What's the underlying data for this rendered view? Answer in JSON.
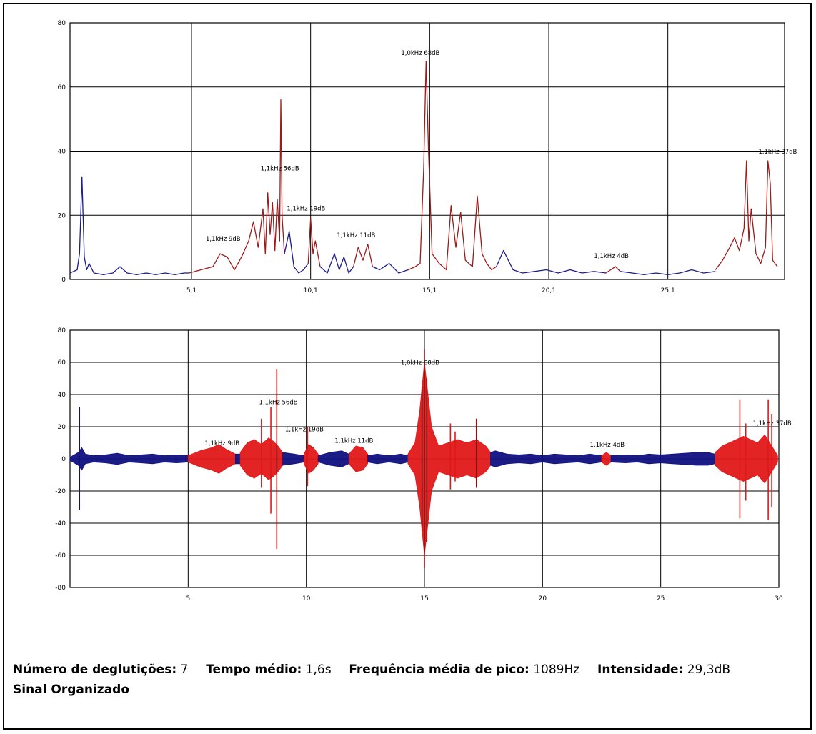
{
  "chart_data": [
    {
      "type": "line",
      "title": "",
      "xlabel": "",
      "ylabel": "",
      "xlim": [
        0,
        30
      ],
      "ylim": [
        0,
        80
      ],
      "grid": true,
      "y_ticks": [
        0,
        20,
        40,
        60,
        80
      ],
      "x_ticks": [
        5.1,
        10.1,
        15.1,
        20.1,
        25.1
      ],
      "x_tick_labels": [
        "5,1",
        "10,1",
        "15,1",
        "20,1",
        "25,1"
      ],
      "colors": {
        "baseline": "#1c1c8c",
        "event": "#9c1a1a"
      },
      "series": [
        {
          "x": [
            0,
            0.3,
            0.4,
            0.5,
            0.6,
            0.7,
            0.8,
            1.0,
            1.4,
            1.8,
            2.1,
            2.4,
            2.8,
            3.2,
            3.6,
            4.0,
            4.4,
            4.8,
            5.0
          ],
          "values": [
            2,
            3,
            8,
            32,
            7,
            3,
            5,
            2,
            1.5,
            2,
            4,
            2,
            1.5,
            2,
            1.5,
            2,
            1.5,
            2,
            2
          ]
        },
        {
          "x": [
            5.0,
            5.5,
            6.0,
            6.3,
            6.6,
            6.9,
            7.2,
            7.5,
            7.7,
            7.9,
            8.1,
            8.2,
            8.3,
            8.4,
            8.5,
            8.6,
            8.7,
            8.8,
            8.85,
            8.9,
            9.0
          ],
          "values": [
            2,
            3,
            4,
            8,
            7,
            3,
            7,
            12,
            18,
            10,
            22,
            8,
            27,
            14,
            24,
            9,
            25,
            12,
            56,
            20,
            8
          ]
        },
        {
          "x": [
            9.0,
            9.2,
            9.4,
            9.6,
            9.8,
            10.0
          ],
          "values": [
            8,
            15,
            4,
            2,
            3,
            5
          ]
        },
        {
          "x": [
            10.0,
            10.1,
            10.2,
            10.3,
            10.5
          ],
          "values": [
            5,
            19,
            8,
            12,
            4
          ]
        },
        {
          "x": [
            10.5,
            10.8,
            11.1,
            11.3,
            11.5,
            11.7,
            11.9
          ],
          "values": [
            4,
            2,
            8,
            3,
            7,
            2,
            4
          ]
        },
        {
          "x": [
            11.9,
            12.1,
            12.3,
            12.5,
            12.7
          ],
          "values": [
            4,
            10,
            6,
            11,
            4
          ]
        },
        {
          "x": [
            12.7,
            13.0,
            13.4,
            13.8,
            14.2
          ],
          "values": [
            4,
            3,
            5,
            2,
            3
          ]
        },
        {
          "x": [
            14.2,
            14.5,
            14.7,
            14.85,
            14.95,
            15.05,
            15.2,
            15.5,
            15.8,
            16.0,
            16.2,
            16.4,
            16.6,
            16.9,
            17.1,
            17.3,
            17.5,
            17.7,
            17.9
          ],
          "values": [
            3,
            4,
            5,
            35,
            68,
            40,
            8,
            5,
            3,
            23,
            10,
            21,
            6,
            4,
            26,
            8,
            5,
            3,
            4
          ]
        },
        {
          "x": [
            17.9,
            18.2,
            18.6,
            19.0,
            19.5,
            20.0,
            20.5,
            21.0,
            21.5,
            22.0,
            22.5
          ],
          "values": [
            4,
            9,
            3,
            2,
            2.5,
            3,
            2,
            3,
            2,
            2.5,
            2
          ]
        },
        {
          "x": [
            22.5,
            22.7,
            22.9,
            23.1
          ],
          "values": [
            2,
            3,
            4,
            2.5
          ]
        },
        {
          "x": [
            23.1,
            23.6,
            24.1,
            24.6,
            25.1,
            25.6,
            26.1,
            26.6,
            27.1
          ],
          "values": [
            2.5,
            2,
            1.5,
            2,
            1.5,
            2,
            3,
            2,
            2.5
          ]
        },
        {
          "x": [
            27.1,
            27.4,
            27.7,
            27.9,
            28.1,
            28.3,
            28.4,
            28.5,
            28.6,
            28.8,
            29.0,
            29.2,
            29.3,
            29.4,
            29.5,
            29.7
          ],
          "values": [
            3,
            6,
            10,
            13,
            9,
            16,
            37,
            12,
            22,
            8,
            5,
            10,
            37,
            30,
            6,
            4
          ]
        }
      ],
      "annotations": [
        {
          "text": "1,1kHz 9dB",
          "x": 5.7,
          "y": 12
        },
        {
          "text": "1,1kHz 56dB",
          "x": 8.0,
          "y": 34
        },
        {
          "text": "1,1kHz 19dB",
          "x": 9.1,
          "y": 21.5
        },
        {
          "text": "1,1kHz 11dB",
          "x": 11.2,
          "y": 13.2
        },
        {
          "text": "1,0kHz 68dB",
          "x": 13.9,
          "y": 70
        },
        {
          "text": "1,1kHz 4dB",
          "x": 22.0,
          "y": 6.7
        },
        {
          "text": "1,1kHz 37dB",
          "x": 28.9,
          "y": 39.2
        }
      ]
    },
    {
      "type": "area",
      "title": "",
      "xlabel": "",
      "ylabel": "",
      "xlim": [
        0,
        30
      ],
      "ylim": [
        -80,
        80
      ],
      "grid": true,
      "y_ticks": [
        -80,
        -60,
        -40,
        -20,
        0,
        20,
        40,
        60,
        80
      ],
      "x_ticks": [
        0,
        5,
        10,
        15,
        20,
        25,
        30
      ],
      "x_tick_labels": [
        "",
        "5",
        "10",
        "15",
        "20",
        "25",
        "30"
      ],
      "colors": {
        "baseline": "#101080",
        "event": "#e01818",
        "spike": "#8c1010"
      },
      "segments": [
        {
          "kind": "baseline",
          "x": [
            0,
            0.35,
            0.5,
            0.65,
            1.0,
            1.5,
            2.0,
            2.5,
            3.0,
            3.5,
            4.0,
            4.5,
            5.0
          ],
          "amp": [
            1,
            4,
            7,
            3,
            2,
            2.5,
            3.5,
            2,
            2.5,
            3,
            2,
            2.5,
            2
          ]
        },
        {
          "kind": "event",
          "x": [
            5.0,
            5.5,
            6.0,
            6.3,
            6.6,
            7.0
          ],
          "amp": [
            2,
            5,
            7,
            9,
            6,
            3
          ]
        },
        {
          "kind": "baseline",
          "x": [
            7.0,
            7.2
          ],
          "amp": [
            3,
            3
          ]
        },
        {
          "kind": "event",
          "x": [
            7.2,
            7.5,
            7.8,
            8.1,
            8.4,
            8.6,
            8.8,
            9.0
          ],
          "amp": [
            4,
            10,
            12,
            9,
            13,
            11,
            8,
            4
          ]
        },
        {
          "kind": "baseline",
          "x": [
            9.0,
            9.5,
            9.9
          ],
          "amp": [
            4,
            3,
            2
          ]
        },
        {
          "kind": "event",
          "x": [
            9.9,
            10.1,
            10.3,
            10.5
          ],
          "amp": [
            3,
            9,
            7,
            3
          ]
        },
        {
          "kind": "baseline",
          "x": [
            10.5,
            11.0,
            11.5,
            11.8
          ],
          "amp": [
            2,
            4,
            5,
            3
          ]
        },
        {
          "kind": "event",
          "x": [
            11.8,
            12.1,
            12.4,
            12.6
          ],
          "amp": [
            3,
            8,
            7,
            3
          ]
        },
        {
          "kind": "baseline",
          "x": [
            12.6,
            13.0,
            13.5,
            14.0,
            14.3
          ],
          "amp": [
            2,
            3,
            2,
            3,
            2
          ]
        },
        {
          "kind": "event",
          "x": [
            14.3,
            14.6,
            14.8,
            15.0,
            15.3,
            15.6,
            16.0,
            16.4,
            16.8,
            17.2,
            17.6,
            17.8
          ],
          "amp": [
            3,
            10,
            30,
            60,
            20,
            8,
            10,
            12,
            10,
            12,
            8,
            4
          ]
        },
        {
          "kind": "baseline",
          "x": [
            17.8,
            18.0,
            18.5,
            19.0,
            19.5,
            20.0,
            20.5,
            21.0,
            21.5,
            22.0,
            22.5
          ],
          "amp": [
            4,
            5,
            3,
            2.5,
            3,
            2,
            3,
            2.5,
            2,
            3,
            2
          ]
        },
        {
          "kind": "event",
          "x": [
            22.5,
            22.7,
            22.9
          ],
          "amp": [
            2,
            4,
            2
          ]
        },
        {
          "kind": "baseline",
          "x": [
            22.9,
            23.5,
            24.0,
            24.5,
            25.0,
            25.5,
            26.0,
            26.5,
            27.0,
            27.3
          ],
          "amp": [
            2,
            2.5,
            2,
            3,
            2.5,
            3,
            3.5,
            4,
            4,
            3
          ]
        },
        {
          "kind": "event",
          "x": [
            27.3,
            27.6,
            27.9,
            28.2,
            28.5,
            28.8,
            29.1,
            29.4,
            29.7,
            29.95
          ],
          "amp": [
            4,
            8,
            10,
            12,
            14,
            12,
            10,
            15,
            8,
            2
          ]
        }
      ],
      "spikes": [
        {
          "x": 0.4,
          "max": 32,
          "min": -32,
          "color": "baseline"
        },
        {
          "x": 8.1,
          "max": 25,
          "min": -18,
          "color": "event"
        },
        {
          "x": 8.5,
          "max": 32,
          "min": -34,
          "color": "event"
        },
        {
          "x": 8.75,
          "max": 56,
          "min": -56,
          "color": "spike"
        },
        {
          "x": 10.05,
          "max": 20,
          "min": -17,
          "color": "event"
        },
        {
          "x": 14.9,
          "max": 45,
          "min": -45,
          "color": "spike"
        },
        {
          "x": 15.0,
          "max": 68,
          "min": -68,
          "color": "spike"
        },
        {
          "x": 15.1,
          "max": 50,
          "min": -52,
          "color": "spike"
        },
        {
          "x": 16.1,
          "max": 22,
          "min": -19,
          "color": "event"
        },
        {
          "x": 16.3,
          "max": 17,
          "min": -14,
          "color": "event"
        },
        {
          "x": 17.2,
          "max": 25,
          "min": -18,
          "color": "spike"
        },
        {
          "x": 28.35,
          "max": 37,
          "min": -37,
          "color": "event"
        },
        {
          "x": 28.6,
          "max": 22,
          "min": -26,
          "color": "event"
        },
        {
          "x": 29.55,
          "max": 37,
          "min": -38,
          "color": "event"
        },
        {
          "x": 29.7,
          "max": 28,
          "min": -30,
          "color": "event"
        }
      ],
      "annotations": [
        {
          "text": "1,1kHz 9dB",
          "x": 5.7,
          "y": 8.5
        },
        {
          "text": "1,1kHz 56dB",
          "x": 8.0,
          "y": 34
        },
        {
          "text": "1,1kHz 19dB",
          "x": 9.1,
          "y": 17.2
        },
        {
          "text": "1,1kHz 11dB",
          "x": 11.2,
          "y": 10
        },
        {
          "text": "1,0kHz 68dB",
          "x": 14.0,
          "y": 58.5
        },
        {
          "text": "1,1kHz 4dB",
          "x": 22.0,
          "y": 7.5
        },
        {
          "text": "1,1kHz 37dB",
          "x": 28.9,
          "y": 21
        }
      ]
    }
  ],
  "summary": {
    "swallows_label": "Número de deglutições:",
    "swallows_value": "7",
    "mean_time_label": "Tempo médio:",
    "mean_time_value": "1,6s",
    "peak_freq_label": "Frequência média de pico:",
    "peak_freq_value": "1089Hz",
    "intensity_label": "Intensidade:",
    "intensity_value": "29,3dB",
    "classification": "Sinal Organizado"
  }
}
